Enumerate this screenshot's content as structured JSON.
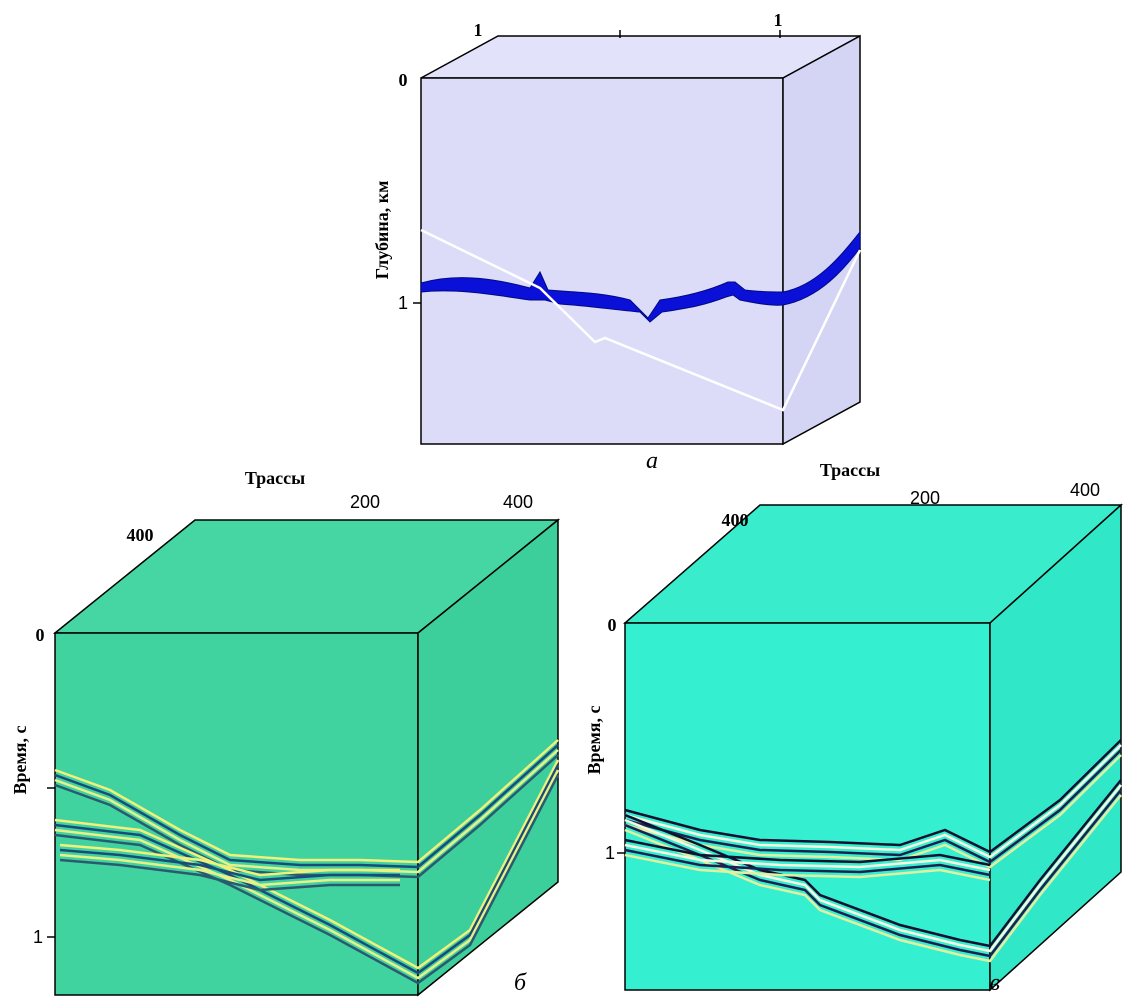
{
  "panels": [
    {
      "top_ticks": [
        "1",
        "1"
      ],
      "depth_top": "0",
      "axis_label": "Глубина, км",
      "depth_tick": "1",
      "caption": "а"
    },
    {
      "top_label": "Трассы",
      "top_ticks": [
        "200",
        "400"
      ],
      "side_tick": "400",
      "time_top": "0",
      "axis_label": "Время, с",
      "time_tick": "1",
      "caption": "б"
    },
    {
      "top_label": "Трассы",
      "top_ticks": [
        "200",
        "400"
      ],
      "side_tick": "400",
      "time_top": "0",
      "axis_label": "Время, с",
      "time_tick": "1",
      "caption": "в"
    }
  ]
}
